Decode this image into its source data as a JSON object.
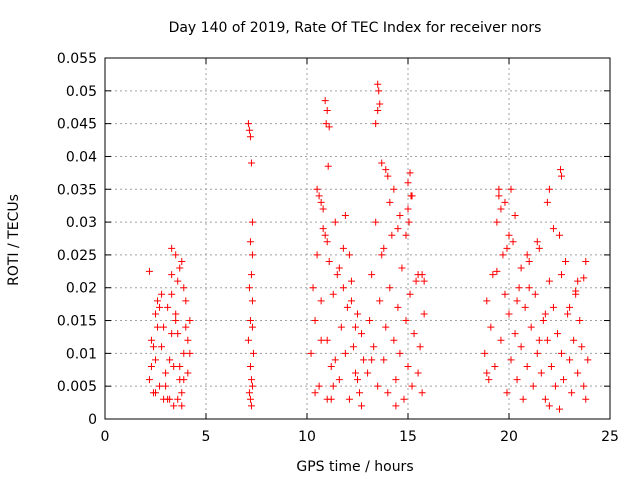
{
  "chart_data": {
    "type": "scatter",
    "title": "Day 140 of 2019, Rate Of TEC Index for receiver nors",
    "xlabel": "GPS time / hours",
    "ylabel": "ROTI / TECUs",
    "xlim": [
      0,
      25
    ],
    "ylim": [
      0,
      0.055
    ],
    "x_ticks": [
      0,
      5,
      10,
      15,
      20,
      25
    ],
    "y_ticks": [
      0,
      0.005,
      0.01,
      0.015,
      0.02,
      0.025,
      0.03,
      0.035,
      0.04,
      0.045,
      0.05,
      0.055
    ],
    "x_tick_labels": [
      "0",
      "5",
      "10",
      "15",
      "20",
      "25"
    ],
    "y_tick_labels": [
      "0",
      "0.005",
      "0.01",
      "0.015",
      "0.02",
      "0.025",
      "0.03",
      "0.035",
      "0.04",
      "0.045",
      "0.05",
      "0.055"
    ],
    "grid": true,
    "marker": "+",
    "color": "#ff0000",
    "series": [
      {
        "name": "ROTI",
        "x": [
          2.2,
          2.3,
          2.4,
          2.5,
          2.5,
          2.6,
          2.7,
          2.8,
          2.9,
          3.0,
          3.1,
          3.2,
          3.3,
          3.3,
          3.4,
          3.5,
          3.6,
          3.7,
          3.8,
          3.9,
          4.0,
          4.1,
          2.3,
          2.6,
          2.9,
          3.2,
          3.5,
          3.8,
          4.1,
          2.4,
          2.7,
          3.0,
          3.3,
          3.6,
          3.9,
          4.2,
          3.3,
          3.5,
          3.7,
          3.9,
          4.0,
          3.4,
          3.6,
          3.8,
          2.2,
          2.5,
          3.1,
          4.2,
          2.8,
          3.7,
          7.1,
          7.15,
          7.2,
          7.25,
          7.3,
          7.2,
          7.3,
          7.25,
          7.15,
          7.2,
          7.3,
          7.1,
          7.35,
          7.2,
          7.25,
          7.3,
          7.15,
          7.2,
          7.25,
          7.3,
          10.2,
          10.3,
          10.4,
          10.5,
          10.6,
          10.7,
          10.8,
          10.9,
          11.0,
          11.1,
          11.2,
          11.3,
          11.4,
          11.5,
          11.6,
          11.7,
          11.8,
          11.9,
          12.0,
          12.1,
          12.2,
          12.3,
          12.4,
          12.5,
          12.6,
          12.7,
          12.8,
          10.5,
          10.8,
          11.0,
          11.3,
          11.6,
          11.9,
          12.2,
          12.5,
          10.4,
          10.7,
          11.0,
          11.4,
          11.8,
          12.1,
          12.4,
          12.7,
          10.9,
          11.0,
          11.1,
          10.95,
          11.05,
          10.6,
          10.7,
          11.2,
          13.0,
          13.1,
          13.2,
          13.3,
          13.4,
          13.5,
          13.6,
          13.7,
          13.8,
          13.9,
          14.0,
          14.1,
          14.2,
          14.3,
          14.4,
          14.5,
          14.6,
          14.7,
          14.8,
          14.9,
          15.0,
          15.1,
          15.2,
          15.3,
          15.4,
          15.5,
          15.6,
          15.7,
          15.8,
          13.5,
          13.55,
          13.6,
          13.5,
          13.4,
          13.7,
          14.0,
          14.3,
          14.6,
          14.9,
          15.2,
          15.5,
          13.2,
          13.8,
          14.4,
          15.0,
          15.1,
          15.0,
          15.15,
          15.05,
          15.7,
          15.8,
          14.1,
          14.5,
          13.9,
          18.8,
          18.9,
          19.0,
          19.1,
          19.2,
          19.3,
          19.4,
          19.5,
          19.6,
          19.7,
          19.8,
          19.9,
          20.0,
          20.1,
          20.2,
          20.3,
          20.4,
          20.5,
          20.6,
          20.7,
          20.8,
          20.9,
          21.0,
          21.1,
          21.2,
          21.3,
          21.4,
          21.5,
          21.6,
          21.7,
          21.8,
          21.9,
          22.0,
          22.1,
          22.2,
          22.3,
          22.4,
          22.5,
          22.6,
          22.7,
          22.8,
          22.9,
          23.0,
          23.1,
          23.2,
          23.3,
          23.4,
          23.5,
          23.6,
          23.7,
          23.8,
          23.9,
          19.5,
          19.8,
          20.0,
          20.3,
          20.6,
          21.0,
          21.4,
          21.8,
          22.2,
          22.6,
          23.0,
          23.4,
          23.8,
          19.4,
          19.9,
          20.4,
          20.9,
          21.5,
          22.0,
          22.5,
          22.55,
          22.6,
          22.0,
          21.9,
          23.3,
          23.7,
          19.6,
          20.1,
          18.9
        ],
        "y": [
          0.006,
          0.012,
          0.004,
          0.016,
          0.009,
          0.018,
          0.005,
          0.011,
          0.014,
          0.007,
          0.017,
          0.003,
          0.013,
          0.019,
          0.008,
          0.015,
          0.021,
          0.006,
          0.024,
          0.01,
          0.018,
          0.012,
          0.008,
          0.014,
          0.003,
          0.009,
          0.016,
          0.004,
          0.007,
          0.011,
          0.017,
          0.005,
          0.022,
          0.013,
          0.006,
          0.015,
          0.026,
          0.025,
          0.023,
          0.02,
          0.014,
          0.002,
          0.003,
          0.002,
          0.0225,
          0.004,
          0.003,
          0.01,
          0.019,
          0.008,
          0.045,
          0.044,
          0.043,
          0.039,
          0.03,
          0.027,
          0.025,
          0.022,
          0.02,
          0.015,
          0.014,
          0.012,
          0.01,
          0.008,
          0.006,
          0.005,
          0.004,
          0.003,
          0.002,
          0.018,
          0.01,
          0.02,
          0.015,
          0.025,
          0.005,
          0.018,
          0.032,
          0.028,
          0.012,
          0.024,
          0.008,
          0.019,
          0.03,
          0.022,
          0.006,
          0.014,
          0.026,
          0.01,
          0.017,
          0.003,
          0.021,
          0.011,
          0.007,
          0.016,
          0.004,
          0.013,
          0.009,
          0.035,
          0.029,
          0.003,
          0.005,
          0.023,
          0.031,
          0.018,
          0.006,
          0.004,
          0.012,
          0.027,
          0.009,
          0.02,
          0.025,
          0.014,
          0.002,
          0.0485,
          0.047,
          0.0445,
          0.045,
          0.0385,
          0.034,
          0.033,
          0.003,
          0.007,
          0.015,
          0.022,
          0.011,
          0.03,
          0.005,
          0.018,
          0.025,
          0.009,
          0.014,
          0.004,
          0.02,
          0.028,
          0.012,
          0.006,
          0.017,
          0.01,
          0.023,
          0.003,
          0.015,
          0.008,
          0.019,
          0.005,
          0.013,
          0.021,
          0.007,
          0.011,
          0.004,
          0.016,
          0.051,
          0.05,
          0.048,
          0.047,
          0.045,
          0.039,
          0.037,
          0.035,
          0.031,
          0.028,
          0.034,
          0.022,
          0.009,
          0.026,
          0.002,
          0.032,
          0.0375,
          0.036,
          0.034,
          0.03,
          0.022,
          0.021,
          0.033,
          0.029,
          0.038,
          0.01,
          0.018,
          0.006,
          0.014,
          0.022,
          0.008,
          0.03,
          0.035,
          0.012,
          0.025,
          0.019,
          0.004,
          0.016,
          0.009,
          0.027,
          0.013,
          0.006,
          0.02,
          0.011,
          0.003,
          0.017,
          0.008,
          0.024,
          0.014,
          0.005,
          0.019,
          0.01,
          0.026,
          0.007,
          0.015,
          0.003,
          0.012,
          0.021,
          0.008,
          0.017,
          0.005,
          0.013,
          0.028,
          0.01,
          0.006,
          0.024,
          0.016,
          0.009,
          0.004,
          0.012,
          0.019,
          0.007,
          0.015,
          0.011,
          0.005,
          0.003,
          0.009,
          0.034,
          0.033,
          0.028,
          0.031,
          0.023,
          0.02,
          0.027,
          0.016,
          0.029,
          0.022,
          0.017,
          0.021,
          0.024,
          0.0225,
          0.026,
          0.018,
          0.025,
          0.012,
          0.002,
          0.0015,
          0.038,
          0.037,
          0.035,
          0.033,
          0.0195,
          0.0215,
          0.032,
          0.035,
          0.007
        ]
      }
    ]
  }
}
